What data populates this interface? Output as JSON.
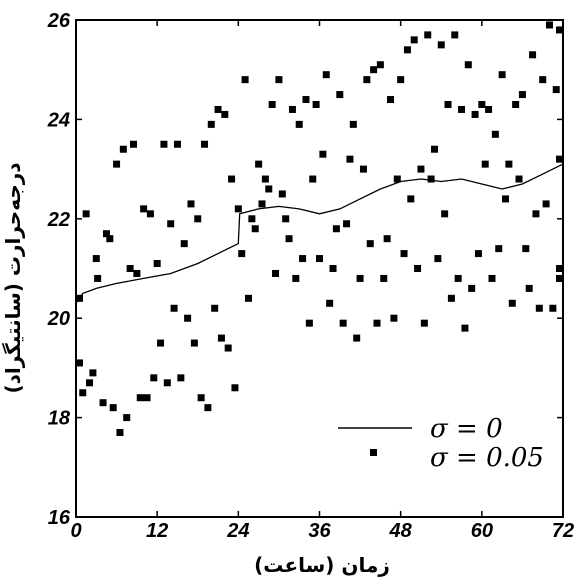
{
  "chart_data": {
    "type": "scatter",
    "xlabel": "زمان (ساعت)",
    "ylabel": "درجه‌حرارت (سانتیگراد)",
    "xlim": [
      0,
      72
    ],
    "ylim": [
      16,
      26
    ],
    "xticks": [
      0,
      12,
      24,
      36,
      48,
      60,
      72
    ],
    "yticks": [
      16,
      18,
      20,
      22,
      24,
      26
    ],
    "xtick_labels": [
      "0",
      "12",
      "24",
      "36",
      "48",
      "60",
      "72"
    ],
    "ytick_labels": [
      "16",
      "18",
      "20",
      "22",
      "24",
      "26"
    ],
    "grid": false,
    "legend_position": "bottom-right",
    "series": [
      {
        "name": "σ = 0",
        "style": "line",
        "color": "#000000",
        "points": [
          [
            0,
            20.3
          ],
          [
            1,
            20.5
          ],
          [
            3,
            20.6
          ],
          [
            6,
            20.7
          ],
          [
            10,
            20.8
          ],
          [
            14,
            20.9
          ],
          [
            18,
            21.1
          ],
          [
            21,
            21.3
          ],
          [
            24,
            21.5
          ],
          [
            24.2,
            22.1
          ],
          [
            27,
            22.2
          ],
          [
            30,
            22.25
          ],
          [
            33,
            22.2
          ],
          [
            36,
            22.1
          ],
          [
            39,
            22.2
          ],
          [
            42,
            22.4
          ],
          [
            45,
            22.6
          ],
          [
            48,
            22.75
          ],
          [
            51,
            22.8
          ],
          [
            54,
            22.75
          ],
          [
            57,
            22.8
          ],
          [
            60,
            22.7
          ],
          [
            63,
            22.6
          ],
          [
            66,
            22.7
          ],
          [
            69,
            22.9
          ],
          [
            72,
            23.1
          ]
        ]
      },
      {
        "name": "σ = 0.05",
        "style": "marker",
        "color": "#000000",
        "points": [
          [
            0.2,
            20.4
          ],
          [
            0.4,
            19.1
          ],
          [
            1,
            18.5
          ],
          [
            1.5,
            22.1
          ],
          [
            2,
            18.7
          ],
          [
            2.5,
            18.9
          ],
          [
            3,
            21.2
          ],
          [
            3.2,
            20.8
          ],
          [
            4,
            18.3
          ],
          [
            4.5,
            21.7
          ],
          [
            5,
            21.6
          ],
          [
            5.5,
            18.2
          ],
          [
            6,
            23.1
          ],
          [
            6.5,
            17.7
          ],
          [
            7,
            23.4
          ],
          [
            7.5,
            18.0
          ],
          [
            8,
            21.0
          ],
          [
            8.5,
            23.5
          ],
          [
            9,
            20.9
          ],
          [
            9.5,
            18.4
          ],
          [
            10,
            22.2
          ],
          [
            10.5,
            18.4
          ],
          [
            11,
            22.1
          ],
          [
            11.5,
            18.8
          ],
          [
            12,
            21.1
          ],
          [
            12.5,
            19.5
          ],
          [
            13,
            23.5
          ],
          [
            13.5,
            18.7
          ],
          [
            14,
            21.9
          ],
          [
            14.5,
            20.2
          ],
          [
            15,
            23.5
          ],
          [
            15.5,
            18.8
          ],
          [
            16,
            21.5
          ],
          [
            16.5,
            20.0
          ],
          [
            17,
            22.3
          ],
          [
            17.5,
            19.5
          ],
          [
            18,
            22.0
          ],
          [
            18.5,
            18.4
          ],
          [
            19,
            23.5
          ],
          [
            19.5,
            18.2
          ],
          [
            20,
            23.9
          ],
          [
            20.5,
            20.2
          ],
          [
            21,
            24.2
          ],
          [
            21.5,
            19.6
          ],
          [
            22,
            24.1
          ],
          [
            22.5,
            19.4
          ],
          [
            23,
            22.8
          ],
          [
            23.5,
            18.6
          ],
          [
            24,
            22.2
          ],
          [
            24.5,
            21.3
          ],
          [
            25,
            24.8
          ],
          [
            25.5,
            20.4
          ],
          [
            26,
            22.0
          ],
          [
            26.5,
            21.8
          ],
          [
            27,
            23.1
          ],
          [
            27.5,
            22.3
          ],
          [
            28,
            22.8
          ],
          [
            28.5,
            22.6
          ],
          [
            29,
            24.3
          ],
          [
            29.5,
            20.9
          ],
          [
            30,
            24.8
          ],
          [
            30.5,
            22.5
          ],
          [
            31,
            22.0
          ],
          [
            31.5,
            21.6
          ],
          [
            32,
            24.2
          ],
          [
            32.5,
            20.8
          ],
          [
            33,
            23.9
          ],
          [
            33.5,
            21.2
          ],
          [
            34,
            24.4
          ],
          [
            34.5,
            19.9
          ],
          [
            35,
            22.8
          ],
          [
            35.5,
            24.3
          ],
          [
            36,
            21.2
          ],
          [
            36.5,
            23.3
          ],
          [
            37,
            24.9
          ],
          [
            37.5,
            20.3
          ],
          [
            38,
            21.0
          ],
          [
            38.5,
            21.8
          ],
          [
            39,
            24.5
          ],
          [
            39.5,
            19.9
          ],
          [
            40,
            21.9
          ],
          [
            40.5,
            23.2
          ],
          [
            41,
            23.9
          ],
          [
            41.5,
            19.6
          ],
          [
            42,
            20.8
          ],
          [
            42.5,
            23.0
          ],
          [
            43,
            24.8
          ],
          [
            43.5,
            21.5
          ],
          [
            44,
            25.0
          ],
          [
            44.5,
            19.9
          ],
          [
            45,
            25.1
          ],
          [
            45.5,
            20.8
          ],
          [
            46,
            21.6
          ],
          [
            46.5,
            24.4
          ],
          [
            47,
            20.0
          ],
          [
            47.5,
            22.8
          ],
          [
            48,
            24.8
          ],
          [
            48.5,
            21.3
          ],
          [
            49,
            25.4
          ],
          [
            49.5,
            22.4
          ],
          [
            50,
            25.6
          ],
          [
            50.5,
            21.0
          ],
          [
            51,
            23.0
          ],
          [
            51.5,
            19.9
          ],
          [
            52,
            25.7
          ],
          [
            52.5,
            22.8
          ],
          [
            53,
            23.4
          ],
          [
            53.5,
            21.2
          ],
          [
            54,
            25.5
          ],
          [
            54.5,
            22.1
          ],
          [
            55,
            24.3
          ],
          [
            55.5,
            20.4
          ],
          [
            56,
            25.7
          ],
          [
            56.5,
            20.8
          ],
          [
            57,
            24.2
          ],
          [
            57.5,
            19.8
          ],
          [
            58,
            25.1
          ],
          [
            58.5,
            20.6
          ],
          [
            59,
            24.1
          ],
          [
            59.5,
            21.3
          ],
          [
            60,
            24.3
          ],
          [
            60.5,
            23.1
          ],
          [
            61,
            24.2
          ],
          [
            61.5,
            20.8
          ],
          [
            62,
            23.7
          ],
          [
            62.5,
            21.4
          ],
          [
            63,
            24.9
          ],
          [
            63.5,
            22.4
          ],
          [
            64,
            23.1
          ],
          [
            64.5,
            20.3
          ],
          [
            65,
            24.3
          ],
          [
            65.5,
            22.8
          ],
          [
            66,
            24.5
          ],
          [
            66.5,
            21.4
          ],
          [
            67,
            20.6
          ],
          [
            67.5,
            25.3
          ],
          [
            68,
            22.1
          ],
          [
            68.5,
            20.2
          ],
          [
            69,
            24.8
          ],
          [
            69.5,
            22.3
          ],
          [
            70,
            25.9
          ],
          [
            70.5,
            20.2
          ],
          [
            71,
            24.6
          ],
          [
            71.5,
            20.8
          ],
          [
            72,
            25.8
          ],
          [
            72.2,
            23.2
          ],
          [
            71.8,
            21.0
          ]
        ]
      }
    ]
  }
}
